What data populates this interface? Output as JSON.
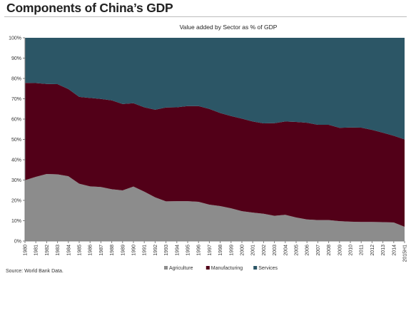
{
  "page": {
    "title": "Components of China’s GDP",
    "source": "Source: World Bank Data."
  },
  "chart_data": {
    "type": "area",
    "stacked": true,
    "title": "Value added by Sector as % of GDP",
    "xlabel": "",
    "ylabel": "",
    "ylim": [
      0,
      100
    ],
    "y_tick_labels": [
      "0%",
      "10%",
      "20%",
      "30%",
      "40%",
      "50%",
      "60%",
      "70%",
      "80%",
      "90%",
      "100%"
    ],
    "legend_position": "bottom",
    "grid": false,
    "categories": [
      "1980",
      "1981",
      "1982",
      "1983",
      "1984",
      "1985",
      "1986",
      "1987",
      "1988",
      "1989",
      "1990",
      "1991",
      "1992",
      "1993",
      "1994",
      "1995",
      "1996",
      "1997",
      "1998",
      "1999",
      "2000",
      "2001",
      "2002",
      "2003",
      "2004",
      "2005",
      "2006",
      "2007",
      "2008",
      "2009",
      "2010",
      "2011",
      "2012",
      "2013",
      "2014",
      "2015H1"
    ],
    "x_tick_labels": [
      "1980",
      "1981",
      "1982",
      "1983",
      "1984",
      "1985",
      "1986",
      "1987",
      "1988",
      "1989",
      "1990",
      "1991",
      "1992",
      "1993",
      "1994",
      "1995",
      "1996",
      "1997",
      "1998",
      "1999",
      "2000",
      "2001",
      "2002",
      "2003",
      "2004",
      "2005",
      "2006",
      "2007",
      "2008",
      "2009",
      "2010",
      "2011",
      "2012",
      "2013",
      "2014",
      "2015H1"
    ],
    "series": [
      {
        "name": "Agriculture",
        "color": "#8c8c8c",
        "values": [
          29.9,
          31.6,
          33.0,
          32.8,
          31.9,
          28.2,
          26.9,
          26.6,
          25.5,
          24.9,
          26.8,
          24.3,
          21.5,
          19.5,
          19.6,
          19.6,
          19.3,
          17.9,
          17.2,
          16.1,
          14.7,
          14.0,
          13.4,
          12.4,
          12.9,
          11.6,
          10.6,
          10.3,
          10.3,
          9.8,
          9.5,
          9.4,
          9.4,
          9.3,
          9.1,
          7.0
        ]
      },
      {
        "name": "Manufacturing",
        "color": "#520018",
        "values": [
          47.9,
          46.1,
          44.3,
          44.4,
          42.9,
          42.7,
          43.5,
          43.3,
          43.7,
          42.5,
          41.0,
          41.5,
          43.1,
          46.2,
          46.2,
          46.8,
          47.1,
          47.1,
          45.8,
          45.4,
          45.5,
          44.8,
          44.5,
          45.6,
          45.9,
          47.0,
          47.6,
          46.9,
          46.9,
          45.9,
          46.4,
          46.4,
          45.3,
          44.0,
          42.7,
          43.0
        ]
      },
      {
        "name": "Services",
        "color": "#2c5666",
        "values": [
          22.2,
          22.3,
          22.7,
          22.8,
          25.2,
          29.1,
          29.6,
          30.1,
          30.8,
          32.6,
          32.2,
          34.2,
          35.4,
          34.3,
          34.2,
          33.6,
          33.6,
          35.0,
          37.0,
          38.5,
          39.8,
          41.2,
          42.1,
          42.0,
          41.2,
          41.4,
          41.8,
          42.8,
          42.8,
          44.3,
          44.1,
          44.2,
          45.3,
          46.7,
          48.2,
          50.0
        ]
      }
    ]
  }
}
